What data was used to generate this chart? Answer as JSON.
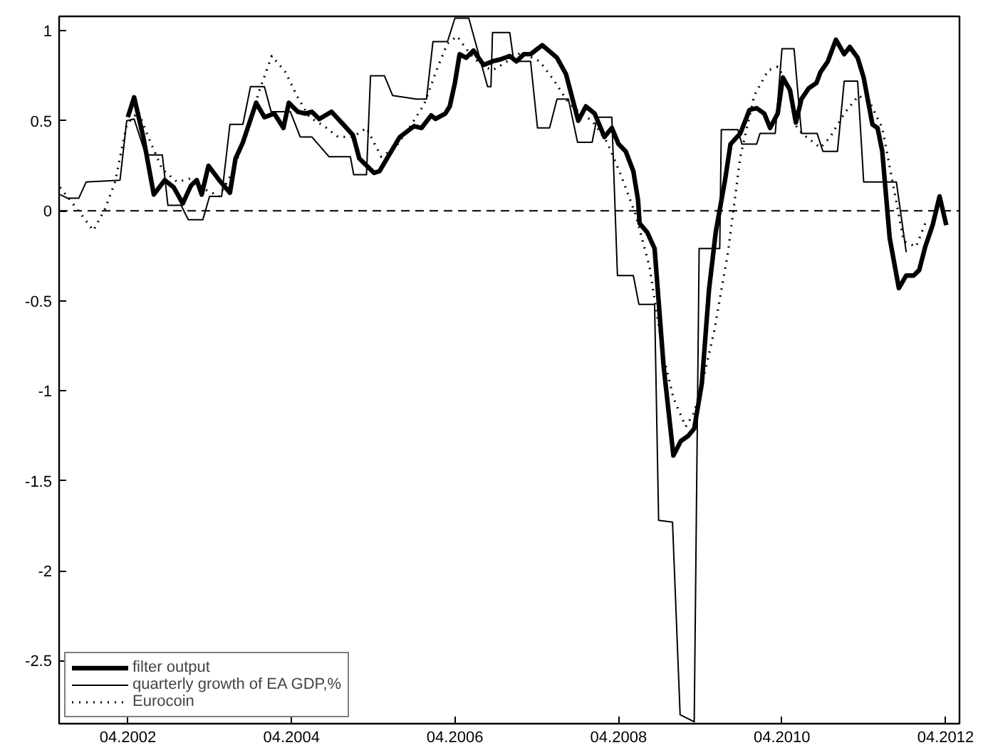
{
  "chart_data": {
    "type": "line",
    "xlim": [
      "2001-05-29",
      "2012-06-02"
    ],
    "ylim": [
      -2.85,
      1.08
    ],
    "xticks": [
      {
        "value": "2002-04",
        "label": "04.2002"
      },
      {
        "value": "2004-04",
        "label": "04.2004"
      },
      {
        "value": "2006-04",
        "label": "04.2006"
      },
      {
        "value": "2008-04",
        "label": "04.2008"
      },
      {
        "value": "2010-04",
        "label": "04.2010"
      },
      {
        "value": "2012-04",
        "label": "04.2012"
      }
    ],
    "yticks": [
      -2.5,
      -2,
      -1.5,
      -1,
      -0.5,
      0,
      0.5,
      1
    ],
    "grid": false,
    "legend": "bottom left",
    "ref_lines": [
      {
        "axis": "y",
        "value": 0,
        "label": null,
        "color": "#000000",
        "line_style": "dashed"
      }
    ],
    "series": [
      {
        "name": "filter output",
        "color": "#000000",
        "line_style": "solid",
        "x": [
          "2002-04-01",
          "2002-04-29",
          "2002-06-09",
          "2002-07-26",
          "2002-09-13",
          "2002-10-23",
          "2002-12-02",
          "2003-01-08",
          "2003-02-03",
          "2003-02-25",
          "2003-03-27",
          "2003-05-14",
          "2003-07-01",
          "2003-07-26",
          "2003-08-28",
          "2003-10-26",
          "2003-12-02",
          "2004-01-15",
          "2004-02-25",
          "2004-03-20",
          "2004-04-29",
          "2004-06-02",
          "2004-07-01",
          "2004-08-03",
          "2004-09-27",
          "2004-11-18",
          "2005-01-01",
          "2005-01-29",
          "2005-04-05",
          "2005-04-29",
          "2005-06-06",
          "2005-07-29",
          "2005-10-01",
          "2005-11-03",
          "2005-12-16",
          "2006-01-04",
          "2006-02-17",
          "2006-03-09",
          "2006-04-01",
          "2006-04-22",
          "2006-05-21",
          "2006-06-23",
          "2006-08-07",
          "2006-09-16",
          "2006-10-19",
          "2006-12-02",
          "2007-01-01",
          "2007-02-03",
          "2007-03-05",
          "2007-04-26",
          "2007-07-01",
          "2007-08-10",
          "2007-10-04",
          "2007-11-07",
          "2007-12-16",
          "2008-01-29",
          "2008-03-02",
          "2008-04-01",
          "2008-05-03",
          "2008-06-06",
          "2008-06-27",
          "2008-07-04",
          "2008-08-07",
          "2008-09-09",
          "2008-10-19",
          "2008-12-02",
          "2009-01-04",
          "2009-02-07",
          "2009-03-05",
          "2009-04-08",
          "2009-05-10",
          "2009-06-09",
          "2009-07-22",
          "2009-08-14",
          "2009-09-27",
          "2009-11-07",
          "2009-12-09",
          "2010-01-12",
          "2010-02-07",
          "2010-03-13",
          "2010-04-05",
          "2010-05-07",
          "2010-06-02",
          "2010-06-27",
          "2010-07-29",
          "2010-09-02",
          "2010-09-20",
          "2010-10-23",
          "2010-11-28",
          "2011-01-04",
          "2011-01-29",
          "2011-03-05",
          "2011-04-01",
          "2011-05-10",
          "2011-06-02",
          "2011-06-23",
          "2011-07-26",
          "2011-09-05",
          "2011-10-08",
          "2011-11-10",
          "2011-12-05",
          "2012-01-01",
          "2012-02-03",
          "2012-03-05",
          "2012-04-04"
        ],
        "values": [
          0.52,
          0.63,
          0.41,
          0.09,
          0.17,
          0.13,
          0.04,
          0.14,
          0.17,
          0.09,
          0.25,
          0.17,
          0.1,
          0.29,
          0.38,
          0.6,
          0.52,
          0.54,
          0.46,
          0.6,
          0.55,
          0.54,
          0.55,
          0.51,
          0.55,
          0.48,
          0.42,
          0.29,
          0.21,
          0.22,
          0.3,
          0.41,
          0.47,
          0.46,
          0.53,
          0.51,
          0.54,
          0.58,
          0.71,
          0.87,
          0.85,
          0.89,
          0.81,
          0.83,
          0.84,
          0.86,
          0.83,
          0.87,
          0.87,
          0.92,
          0.85,
          0.76,
          0.5,
          0.58,
          0.54,
          0.41,
          0.46,
          0.37,
          0.33,
          0.22,
          0.06,
          -0.07,
          -0.12,
          -0.21,
          -0.86,
          -1.36,
          -1.28,
          -1.25,
          -1.21,
          -0.96,
          -0.44,
          -0.12,
          0.18,
          0.37,
          0.43,
          0.56,
          0.57,
          0.54,
          0.46,
          0.54,
          0.74,
          0.67,
          0.49,
          0.62,
          0.68,
          0.71,
          0.77,
          0.83,
          0.95,
          0.87,
          0.91,
          0.85,
          0.74,
          0.48,
          0.46,
          0.33,
          -0.15,
          -0.43,
          -0.36,
          -0.36,
          -0.33,
          -0.2,
          -0.08,
          0.08,
          -0.08
        ]
      },
      {
        "name": "quarterly growth of EA GDP,%",
        "color": "#000000",
        "line_style": "solid",
        "x": [
          "2001-06-02",
          "2001-07-04",
          "2001-08-25",
          "2001-09-27",
          "2002-02-25",
          "2002-03-27",
          "2002-04-29",
          "2002-06-20",
          "2002-09-02",
          "2002-09-27",
          "2002-11-25",
          "2002-12-27",
          "2003-03-02",
          "2003-04-01",
          "2003-05-25",
          "2003-07-01",
          "2003-08-28",
          "2003-10-01",
          "2003-12-02",
          "2004-01-01",
          "2004-03-27",
          "2004-05-10",
          "2004-07-01",
          "2004-09-16",
          "2004-12-20",
          "2005-01-04",
          "2005-03-02",
          "2005-03-20",
          "2005-05-21",
          "2005-06-27",
          "2005-10-11",
          "2005-11-25",
          "2005-12-24",
          "2006-02-27",
          "2006-04-01",
          "2006-06-02",
          "2006-08-25",
          "2006-09-09",
          "2006-09-16",
          "2006-12-02",
          "2006-12-20",
          "2007-03-05",
          "2007-04-05",
          "2007-05-29",
          "2007-07-01",
          "2007-08-21",
          "2007-10-01",
          "2007-12-05",
          "2007-12-27",
          "2008-03-02",
          "2008-03-27",
          "2008-06-06",
          "2008-07-01",
          "2008-09-09",
          "2008-09-27",
          "2008-11-28",
          "2009-01-01",
          "2009-03-05",
          "2009-03-27",
          "2009-06-27",
          "2009-07-04",
          "2009-09-16",
          "2009-10-04",
          "2009-12-09",
          "2009-12-24",
          "2010-03-02",
          "2010-04-01",
          "2010-05-25",
          "2010-06-27",
          "2010-09-05",
          "2010-10-01",
          "2010-12-05",
          "2011-01-04",
          "2011-03-05",
          "2011-04-01",
          "2011-08-25",
          "2011-10-08"
        ],
        "values": [
          0.09,
          0.07,
          0.07,
          0.16,
          0.17,
          0.5,
          0.51,
          0.31,
          0.31,
          0.03,
          0.03,
          -0.05,
          -0.05,
          0.08,
          0.08,
          0.48,
          0.48,
          0.69,
          0.69,
          0.55,
          0.55,
          0.41,
          0.41,
          0.3,
          0.3,
          0.2,
          0.2,
          0.75,
          0.75,
          0.64,
          0.62,
          0.62,
          0.94,
          0.94,
          1.07,
          1.07,
          0.69,
          0.69,
          0.99,
          0.99,
          0.83,
          0.83,
          0.46,
          0.46,
          0.62,
          0.62,
          0.38,
          0.38,
          0.52,
          0.52,
          -0.36,
          -0.36,
          -0.52,
          -0.52,
          -1.72,
          -1.73,
          -2.8,
          -2.84,
          -0.21,
          -0.21,
          0.45,
          0.45,
          0.37,
          0.37,
          0.43,
          0.43,
          0.9,
          0.9,
          0.43,
          0.43,
          0.33,
          0.33,
          0.72,
          0.72,
          0.16,
          0.16,
          -0.23
        ]
      },
      {
        "name": "Eurocoin",
        "color": "#000000",
        "line_style": "dotted",
        "x": [
          "2001-06-02",
          "2001-08-17",
          "2001-10-29",
          "2001-12-20",
          "2002-02-03",
          "2002-03-27",
          "2002-05-18",
          "2002-07-01",
          "2002-09-02",
          "2002-11-07",
          "2003-01-08",
          "2003-03-09",
          "2003-05-14",
          "2003-07-15",
          "2003-09-20",
          "2003-11-10",
          "2004-01-04",
          "2004-03-05",
          "2004-04-29",
          "2004-06-20",
          "2004-08-25",
          "2004-10-26",
          "2005-01-01",
          "2005-03-02",
          "2005-05-07",
          "2005-07-08",
          "2005-09-09",
          "2005-11-14",
          "2006-01-15",
          "2006-02-27",
          "2006-04-11",
          "2006-06-02",
          "2006-07-26",
          "2006-09-16",
          "2006-11-21",
          "2007-01-22",
          "2007-04-15",
          "2007-06-20",
          "2007-08-21",
          "2007-10-15",
          "2007-12-05",
          "2008-02-10",
          "2008-04-11",
          "2008-06-16",
          "2008-08-17",
          "2008-10-19",
          "2008-12-02",
          "2009-01-26",
          "2009-03-05",
          "2009-04-19",
          "2009-06-02",
          "2009-08-03",
          "2009-09-27",
          "2009-11-28",
          "2010-01-29",
          "2010-03-13",
          "2010-04-26",
          "2010-06-06",
          "2010-07-19",
          "2010-09-20",
          "2010-11-03",
          "2011-01-04",
          "2011-03-09",
          "2011-04-29",
          "2011-06-23",
          "2011-08-14",
          "2011-09-27",
          "2011-11-21",
          "2012-01-01"
        ],
        "values": [
          0.13,
          0.01,
          -0.11,
          0.01,
          0.16,
          0.48,
          0.55,
          0.41,
          0.23,
          0.16,
          0.18,
          0.12,
          0.08,
          0.22,
          0.46,
          0.67,
          0.86,
          0.77,
          0.63,
          0.52,
          0.47,
          0.41,
          0.41,
          0.46,
          0.3,
          0.35,
          0.46,
          0.59,
          0.8,
          0.93,
          0.97,
          0.88,
          0.81,
          0.78,
          0.83,
          0.88,
          0.83,
          0.72,
          0.6,
          0.54,
          0.5,
          0.38,
          0.2,
          -0.02,
          -0.31,
          -0.81,
          -1.04,
          -1.2,
          -1.12,
          -0.91,
          -0.67,
          -0.23,
          0.3,
          0.64,
          0.78,
          0.8,
          0.71,
          0.46,
          0.41,
          0.35,
          0.41,
          0.54,
          0.64,
          0.6,
          0.46,
          0.12,
          -0.17,
          -0.2,
          -0.07
        ]
      }
    ]
  }
}
